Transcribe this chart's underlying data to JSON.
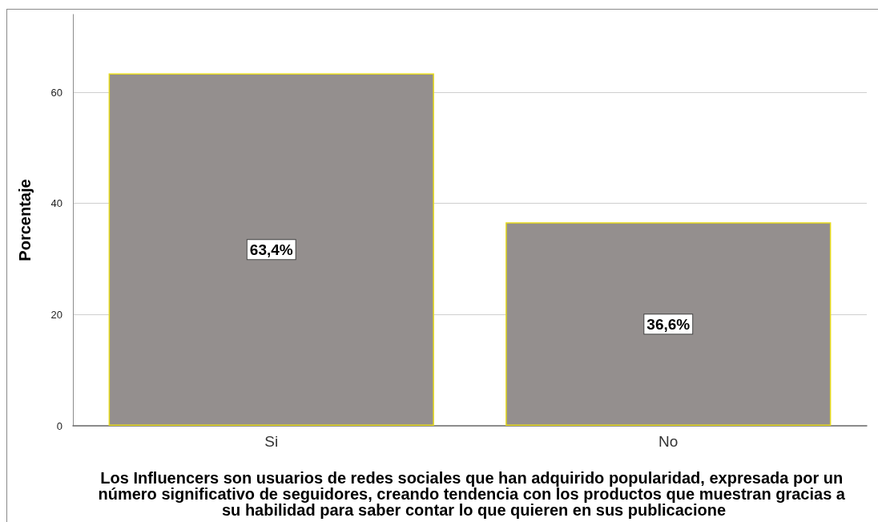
{
  "chart_data": {
    "type": "bar",
    "xlabel": "Los Influencers son usuarios de redes sociales que han adquirido popularidad, expresada por un número significativo de seguidores, creando tendencia con los productos que muestran gracias a su habilidad para saber contar lo que quieren en sus publicacione",
    "ylabel": "Porcentaje",
    "categories": [
      "Si",
      "No"
    ],
    "values": [
      63.4,
      36.6
    ],
    "value_labels": [
      "63,4%",
      "36,6%"
    ],
    "color": "#948f8e",
    "ylim": [
      0,
      74
    ],
    "yticks": [
      0,
      20,
      40,
      60
    ],
    "grid": "y"
  }
}
